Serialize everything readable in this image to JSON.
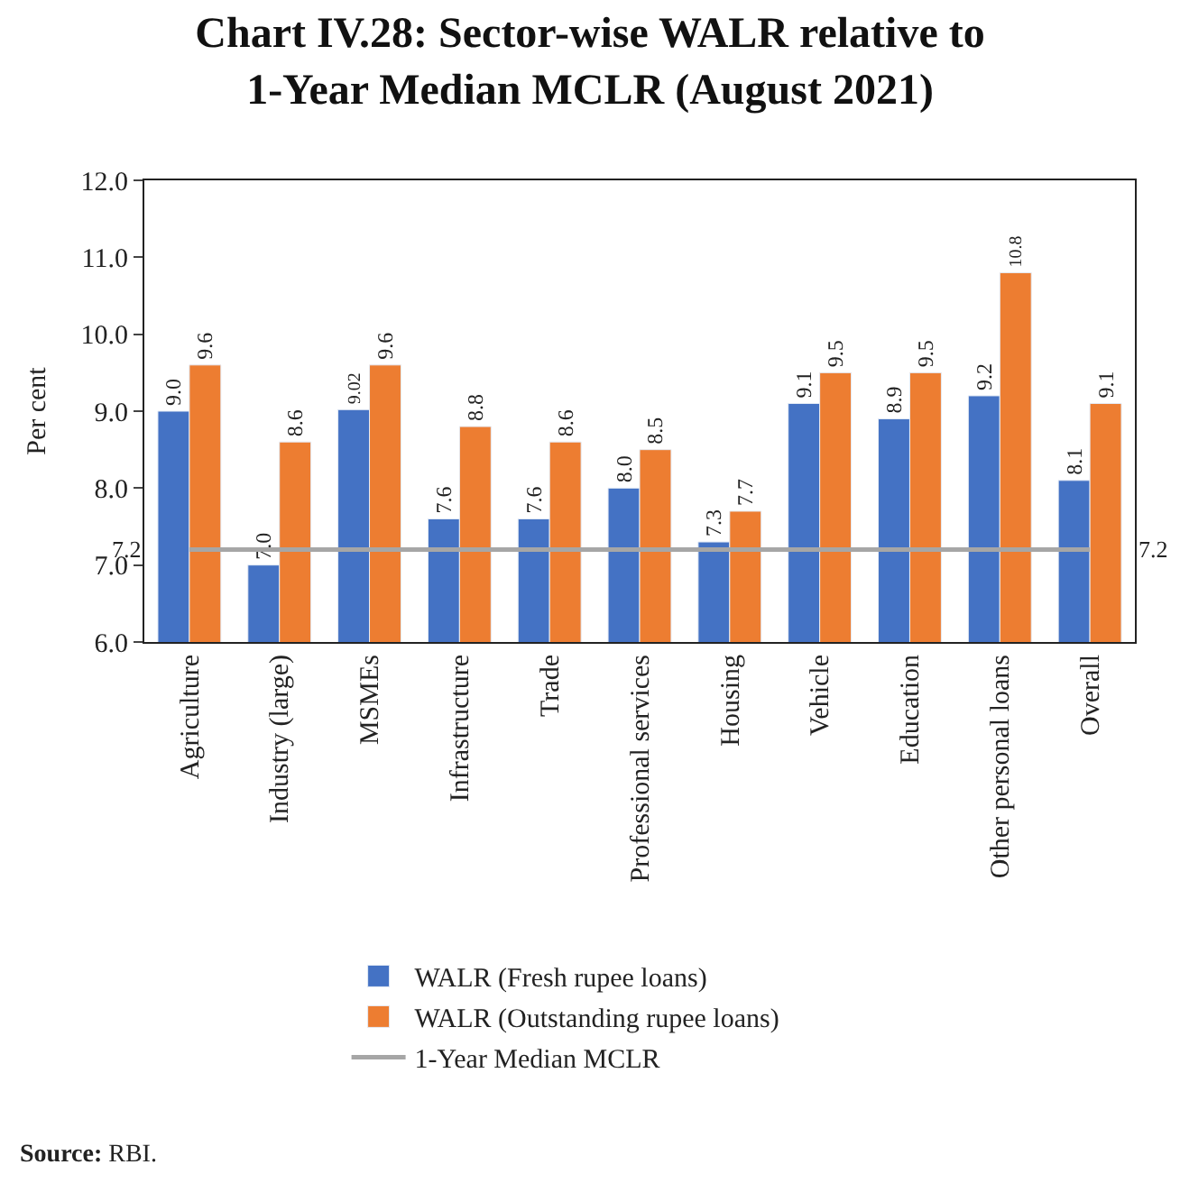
{
  "chart_data": {
    "type": "bar",
    "title": "Chart IV.28: Sector-wise WALR relative to 1-Year Median MCLR (August 2021)",
    "ylabel": "Per cent",
    "categories": [
      "Agriculture",
      "Industry (large)",
      "MSMEs",
      "Infrastructure",
      "Trade",
      "Professional services",
      "Housing",
      "Vehicle",
      "Education",
      "Other personal loans",
      "Overall"
    ],
    "series": [
      {
        "name": "WALR (Fresh rupee loans)",
        "color": "#4472c4",
        "values": [
          9.0,
          7.0,
          9.02,
          7.6,
          7.6,
          8.0,
          7.3,
          9.1,
          8.9,
          9.2,
          8.1
        ],
        "value_labels": [
          "9.0",
          "7.0",
          "9.02",
          "7.6",
          "7.6",
          "8.0",
          "7.3",
          "9.1",
          "8.9",
          "9.2",
          "8.1"
        ]
      },
      {
        "name": "WALR (Outstanding rupee loans)",
        "color": "#ed7d31",
        "values": [
          9.6,
          8.6,
          9.6,
          8.8,
          8.6,
          8.5,
          7.7,
          9.5,
          9.5,
          10.8,
          9.1
        ],
        "value_labels": [
          "9.6",
          "8.6",
          "9.6",
          "8.8",
          "8.6",
          "8.5",
          "7.7",
          "9.5",
          "9.5",
          "10.8",
          "9.1"
        ]
      },
      {
        "name": "1-Year Median MCLR",
        "type": "line",
        "color": "#a6a6a6",
        "values": [
          7.2,
          7.2,
          7.2,
          7.2,
          7.2,
          7.2,
          7.2,
          7.2,
          7.2,
          7.2,
          7.2
        ]
      }
    ],
    "ylim": [
      6.0,
      12.0
    ],
    "yticks": [
      {
        "value": 6,
        "label": "6.0"
      },
      {
        "value": 7,
        "label": "7.0"
      },
      {
        "value": 8,
        "label": "8.0"
      },
      {
        "value": 9,
        "label": "9.0"
      },
      {
        "value": 10,
        "label": "10.0"
      },
      {
        "value": 11,
        "label": "11.0"
      },
      {
        "value": 12,
        "label": "12.0"
      }
    ],
    "legend": "bottom",
    "annotations": [
      {
        "text": "7.2",
        "x": "Agriculture",
        "y": 7.2
      },
      {
        "text": "7.2",
        "x": "Overall",
        "y": 7.2
      },
      "$^{}$Source: RBI."
    ]
  }
}
